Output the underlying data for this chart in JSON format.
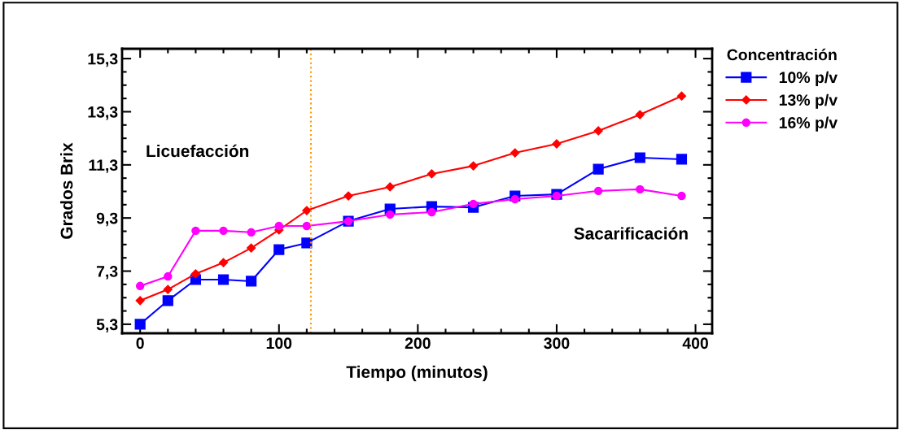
{
  "chart_data": {
    "type": "line",
    "xlabel": "Tiempo (minutos)",
    "ylabel": "Grados Brix",
    "legend_title": "Concentración",
    "legend": "top right",
    "line_style": "solid",
    "grid": false,
    "x": [
      0,
      20,
      40,
      60,
      80,
      100,
      120,
      150,
      180,
      210,
      240,
      270,
      300,
      330,
      360,
      390
    ],
    "series": [
      {
        "name": "10% p/v",
        "color": "#0000ff",
        "marker": "square",
        "values": [
          5.3,
          6.19,
          6.98,
          6.98,
          6.92,
          8.11,
          8.36,
          9.18,
          9.64,
          9.73,
          9.7,
          10.13,
          10.19,
          11.14,
          11.57,
          11.51
        ]
      },
      {
        "name": "13% p/v",
        "color": "#ff0000",
        "marker": "diamond",
        "values": [
          6.19,
          6.61,
          7.2,
          7.62,
          8.17,
          8.85,
          9.58,
          10.13,
          10.47,
          10.96,
          11.26,
          11.75,
          12.09,
          12.58,
          13.19,
          13.89
        ]
      },
      {
        "name": "16% p/v",
        "color": "#ff00ff",
        "marker": "circle",
        "values": [
          6.74,
          7.1,
          8.82,
          8.82,
          8.76,
          9.0,
          9.0,
          9.18,
          9.43,
          9.52,
          9.83,
          10.01,
          10.13,
          10.32,
          10.38,
          10.13
        ]
      }
    ],
    "xlim": [
      -13,
      412
    ],
    "ylim": [
      4.96,
      15.67
    ],
    "xticks": [
      0,
      {
        "value": 20,
        "label": null
      },
      {
        "value": 40,
        "label": null
      },
      {
        "value": 60,
        "label": null
      },
      {
        "value": 80,
        "label": null
      },
      100,
      {
        "value": 120,
        "label": null
      },
      {
        "value": 140,
        "label": null
      },
      {
        "value": 160,
        "label": null
      },
      {
        "value": 180,
        "label": null
      },
      200,
      {
        "value": 220,
        "label": null
      },
      {
        "value": 240,
        "label": null
      },
      {
        "value": 260,
        "label": null
      },
      {
        "value": 280,
        "label": null
      },
      300,
      {
        "value": 320,
        "label": null
      },
      {
        "value": 340,
        "label": null
      },
      {
        "value": 360,
        "label": null
      },
      {
        "value": 380,
        "label": null
      },
      400
    ],
    "yticks": [
      {
        "value": 5.3,
        "label": "5,3"
      },
      {
        "value": 5.8,
        "label": null
      },
      {
        "value": 6.3,
        "label": null
      },
      {
        "value": 6.8,
        "label": null
      },
      {
        "value": 7.3,
        "label": "7,3"
      },
      {
        "value": 7.8,
        "label": null
      },
      {
        "value": 8.3,
        "label": null
      },
      {
        "value": 8.8,
        "label": null
      },
      {
        "value": 9.3,
        "label": "9,3"
      },
      {
        "value": 9.8,
        "label": null
      },
      {
        "value": 10.3,
        "label": null
      },
      {
        "value": 10.8,
        "label": null
      },
      {
        "value": 11.3,
        "label": "11,3"
      },
      {
        "value": 11.8,
        "label": null
      },
      {
        "value": 12.3,
        "label": null
      },
      {
        "value": 12.8,
        "label": null
      },
      {
        "value": 13.3,
        "label": "13,3"
      },
      {
        "value": 13.8,
        "label": null
      },
      {
        "value": 14.3,
        "label": null
      },
      {
        "value": 14.8,
        "label": null
      },
      {
        "value": 15.3,
        "label": "15,3"
      }
    ],
    "ref_lines": [
      {
        "axis": "x",
        "value": 123,
        "label": null,
        "color": "#ff9900",
        "line_style": "dotted"
      }
    ],
    "annotations": [
      "Licuefacción",
      "Sacarificación"
    ]
  }
}
